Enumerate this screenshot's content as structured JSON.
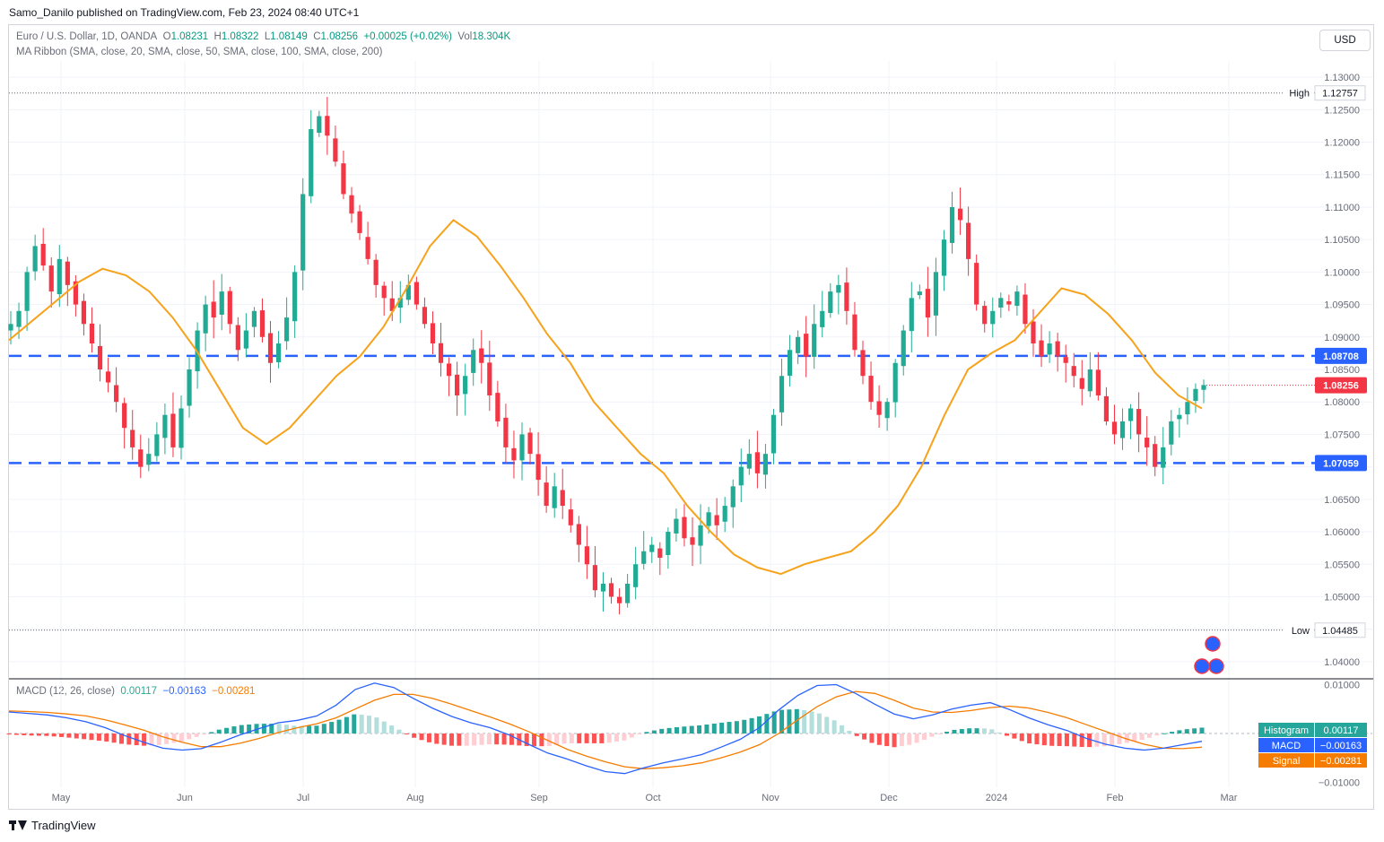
{
  "header": {
    "publisher_line": "Samo_Danilo published on TradingView.com, Feb 23, 2024 08:40 UTC+1",
    "currency": "USD"
  },
  "legend": {
    "symbol": "Euro / U.S. Dollar, 1D, OANDA",
    "o_label": "O",
    "o": "1.08231",
    "h_label": "H",
    "h": "1.08322",
    "l_label": "L",
    "l": "1.08149",
    "c_label": "C",
    "c": "1.08256",
    "change": "+0.00025 (+0.02%)",
    "vol_label": "Vol",
    "vol": "18.304K",
    "ribbon": "MA Ribbon (SMA, close, 20, SMA, close, 50, SMA, close, 100, SMA, close, 200)",
    "macd_label": "MACD (12, 26, close)",
    "macd_hist": "0.00117",
    "macd_line": "−0.00163",
    "macd_signal": "−0.00281"
  },
  "brand": "TradingView",
  "colors": {
    "up": "#22ab94",
    "down": "#f23645",
    "ma": "#f7a21b",
    "level": "#2962ff",
    "macd": "#2962ff",
    "signal": "#f57c00",
    "grid": "#f0f3fa"
  },
  "chart_data": [
    {
      "type": "candlestick",
      "title": "Euro / U.S. Dollar, 1D, OANDA",
      "x_axis_labels": [
        "May",
        "Jun",
        "Jul",
        "Aug",
        "Sep",
        "Oct",
        "Nov",
        "Dec",
        "2024",
        "Feb",
        "Mar"
      ],
      "y_ticks": [
        "1.13000",
        "1.12500",
        "1.12000",
        "1.11500",
        "1.11000",
        "1.10500",
        "1.10000",
        "1.09500",
        "1.09000",
        "1.08500",
        "1.08000",
        "1.07500",
        "1.07000",
        "1.06500",
        "1.06000",
        "1.05500",
        "1.05000",
        "1.04500",
        "1.04000"
      ],
      "ylim": [
        1.0375,
        1.1325
      ],
      "high": {
        "label": "High",
        "value": "1.12757"
      },
      "low": {
        "label": "Low",
        "value": "1.04485"
      },
      "levels": [
        {
          "value": "1.08708",
          "color": "#2962ff",
          "style": "dashed"
        },
        {
          "value": "1.07059",
          "color": "#2962ff",
          "style": "dashed"
        }
      ],
      "last_price": {
        "value": "1.08256",
        "color": "#f23645"
      },
      "close_path": [
        1.092,
        1.094,
        1.1,
        1.104,
        1.101,
        1.097,
        1.102,
        1.098,
        1.095,
        1.092,
        1.089,
        1.085,
        1.083,
        1.08,
        1.076,
        1.073,
        1.07,
        1.072,
        1.075,
        1.078,
        1.073,
        1.079,
        1.085,
        1.091,
        1.095,
        1.093,
        1.097,
        1.092,
        1.088,
        1.091,
        1.094,
        1.09,
        1.086,
        1.089,
        1.093,
        1.1,
        1.112,
        1.122,
        1.124,
        1.121,
        1.117,
        1.112,
        1.109,
        1.106,
        1.102,
        1.098,
        1.096,
        1.094,
        1.096,
        1.098,
        1.095,
        1.092,
        1.089,
        1.086,
        1.084,
        1.081,
        1.084,
        1.088,
        1.086,
        1.081,
        1.077,
        1.073,
        1.071,
        1.075,
        1.072,
        1.068,
        1.064,
        1.067,
        1.064,
        1.061,
        1.058,
        1.055,
        1.051,
        1.052,
        1.05,
        1.049,
        1.052,
        1.055,
        1.057,
        1.058,
        1.056,
        1.06,
        1.062,
        1.059,
        1.058,
        1.061,
        1.063,
        1.061,
        1.064,
        1.067,
        1.07,
        1.072,
        1.069,
        1.072,
        1.078,
        1.084,
        1.088,
        1.09,
        1.087,
        1.092,
        1.094,
        1.097,
        1.098,
        1.094,
        1.088,
        1.084,
        1.08,
        1.078,
        1.08,
        1.086,
        1.091,
        1.096,
        1.097,
        1.093,
        1.1,
        1.105,
        1.11,
        1.108,
        1.102,
        1.095,
        1.092,
        1.094,
        1.096,
        1.095,
        1.097,
        1.092,
        1.089,
        1.087,
        1.089,
        1.087,
        1.086,
        1.084,
        1.082,
        1.085,
        1.081,
        1.077,
        1.075,
        1.077,
        1.079,
        1.075,
        1.073,
        1.07,
        1.073,
        1.077,
        1.078,
        1.08,
        1.082,
        1.0826
      ],
      "moving_average": {
        "name": "MA Ribbon (SMA, close, 20, SMA, close, 50, SMA, close, 100, SMA, close, 200)",
        "values": [
          1.0895,
          1.0925,
          1.0955,
          1.0985,
          1.1005,
          1.0995,
          1.097,
          1.093,
          1.088,
          1.082,
          1.076,
          1.0735,
          1.076,
          1.08,
          1.084,
          1.087,
          1.0915,
          1.0975,
          1.104,
          1.108,
          1.1055,
          1.101,
          1.096,
          1.0905,
          1.086,
          1.08,
          1.076,
          1.072,
          1.069,
          1.064,
          1.06,
          1.0565,
          1.0545,
          1.0535,
          1.055,
          1.056,
          1.057,
          1.06,
          1.064,
          1.07,
          1.078,
          1.085,
          1.0875,
          1.0895,
          1.0935,
          1.0975,
          1.0965,
          1.0935,
          1.0895,
          1.0845,
          1.081,
          1.079
        ]
      }
    },
    {
      "type": "macd",
      "title": "MACD (12, 26, close)",
      "y_ticks": [
        "0.01000",
        "0.00000",
        "−0.01000"
      ],
      "ylim": [
        -0.011,
        0.011
      ],
      "histogram_label": "Histogram",
      "histogram_value": "0.00117",
      "macd_label": "MACD",
      "macd_value": "−0.00163",
      "signal_label": "Signal",
      "signal_value": "−0.00281",
      "macd_values": [
        0.0044,
        0.0041,
        0.0038,
        0.0032,
        0.0024,
        0.0012,
        -0.0004,
        -0.0018,
        -0.003,
        -0.0034,
        -0.0031,
        -0.0018,
        -0.0003,
        0.001,
        0.0022,
        0.0027,
        0.0036,
        0.0058,
        0.009,
        0.0103,
        0.0094,
        0.0072,
        0.0052,
        0.0035,
        0.0022,
        0.0012,
        -0.0003,
        -0.0022,
        -0.004,
        -0.0052,
        -0.0066,
        -0.0078,
        -0.0082,
        -0.007,
        -0.006,
        -0.0052,
        -0.0043,
        -0.0028,
        -0.0012,
        0.0012,
        0.0048,
        0.0078,
        0.0098,
        0.01,
        0.0082,
        0.006,
        0.004,
        0.003,
        0.0038,
        0.005,
        0.0058,
        0.0063,
        0.0049,
        0.0032,
        0.0018,
        0.0006,
        -0.001,
        -0.0022,
        -0.003,
        -0.0034,
        -0.003,
        -0.0023,
        -0.0016
      ],
      "signal_values": [
        0.0046,
        0.0045,
        0.0043,
        0.004,
        0.0036,
        0.0028,
        0.0018,
        0.0007,
        -0.0007,
        -0.0018,
        -0.0027,
        -0.0027,
        -0.002,
        -0.001,
        0.0002,
        0.0012,
        0.002,
        0.0032,
        0.005,
        0.0068,
        0.008,
        0.008,
        0.0072,
        0.006,
        0.0047,
        0.0034,
        0.002,
        0.0004,
        -0.0014,
        -0.0032,
        -0.0046,
        -0.0058,
        -0.0068,
        -0.0072,
        -0.007,
        -0.0066,
        -0.006,
        -0.005,
        -0.0038,
        -0.0023,
        0.0,
        0.0028,
        0.0055,
        0.0075,
        0.0086,
        0.0082,
        0.0068,
        0.0052,
        0.0044,
        0.0043,
        0.0047,
        0.0053,
        0.0056,
        0.0052,
        0.0043,
        0.0032,
        0.0018,
        0.0004,
        -0.001,
        -0.0022,
        -0.003,
        -0.0031,
        -0.0028
      ]
    }
  ]
}
